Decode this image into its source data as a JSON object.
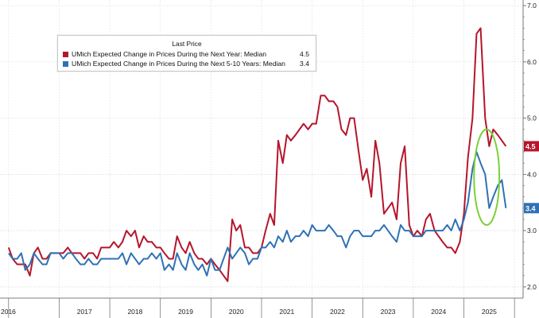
{
  "chart_data": {
    "type": "line",
    "title": "",
    "xlabel": "",
    "ylabel": "",
    "legend_title": "Last Price",
    "legend_placement": "top-left",
    "y_axis_side": "right",
    "ylim": [
      1.8,
      7.1
    ],
    "yticks": [
      "2.0",
      "3.0",
      "4.0",
      "5.0",
      "6.0",
      "7.0"
    ],
    "year_labels": [
      "2016",
      "2017",
      "2018",
      "2019",
      "2020",
      "2021",
      "2022",
      "2023",
      "2024",
      "2025"
    ],
    "grid": true,
    "highlight": {
      "shape": "ellipse",
      "color": "#7cd13a",
      "x_center": 2025.45,
      "y_center": 3.95,
      "x_radius": 0.25,
      "y_radius": 0.85
    },
    "series": [
      {
        "name": "UMich Expected Change in Prices During the Next Year: Median",
        "last_value": "4.5",
        "color": "#b5152b",
        "points": [
          [
            2016.0,
            2.7
          ],
          [
            2016.08,
            2.5
          ],
          [
            2016.17,
            2.4
          ],
          [
            2016.25,
            2.4
          ],
          [
            2016.33,
            2.4
          ],
          [
            2016.42,
            2.2
          ],
          [
            2016.5,
            2.6
          ],
          [
            2016.58,
            2.7
          ],
          [
            2016.67,
            2.5
          ],
          [
            2016.75,
            2.5
          ],
          [
            2016.83,
            2.6
          ],
          [
            2016.92,
            2.6
          ],
          [
            2017.0,
            2.6
          ],
          [
            2017.08,
            2.6
          ],
          [
            2017.17,
            2.7
          ],
          [
            2017.25,
            2.6
          ],
          [
            2017.33,
            2.6
          ],
          [
            2017.42,
            2.6
          ],
          [
            2017.5,
            2.5
          ],
          [
            2017.58,
            2.6
          ],
          [
            2017.67,
            2.6
          ],
          [
            2017.75,
            2.5
          ],
          [
            2017.83,
            2.7
          ],
          [
            2017.92,
            2.7
          ],
          [
            2018.0,
            2.7
          ],
          [
            2018.08,
            2.8
          ],
          [
            2018.17,
            2.7
          ],
          [
            2018.25,
            2.8
          ],
          [
            2018.33,
            3.0
          ],
          [
            2018.42,
            2.9
          ],
          [
            2018.5,
            3.0
          ],
          [
            2018.58,
            2.7
          ],
          [
            2018.67,
            2.9
          ],
          [
            2018.75,
            2.8
          ],
          [
            2018.83,
            2.8
          ],
          [
            2018.92,
            2.7
          ],
          [
            2019.0,
            2.7
          ],
          [
            2019.08,
            2.6
          ],
          [
            2019.17,
            2.5
          ],
          [
            2019.25,
            2.5
          ],
          [
            2019.33,
            2.9
          ],
          [
            2019.42,
            2.7
          ],
          [
            2019.5,
            2.6
          ],
          [
            2019.58,
            2.8
          ],
          [
            2019.67,
            2.6
          ],
          [
            2019.75,
            2.5
          ],
          [
            2019.83,
            2.5
          ],
          [
            2019.92,
            2.4
          ],
          [
            2020.0,
            2.5
          ],
          [
            2020.08,
            2.4
          ],
          [
            2020.17,
            2.3
          ],
          [
            2020.25,
            2.2
          ],
          [
            2020.33,
            2.1
          ],
          [
            2020.42,
            3.2
          ],
          [
            2020.5,
            3.0
          ],
          [
            2020.58,
            3.1
          ],
          [
            2020.67,
            2.7
          ],
          [
            2020.75,
            2.7
          ],
          [
            2020.83,
            2.6
          ],
          [
            2020.92,
            2.6
          ],
          [
            2021.0,
            2.7
          ],
          [
            2021.08,
            3.0
          ],
          [
            2021.17,
            3.3
          ],
          [
            2021.25,
            3.1
          ],
          [
            2021.33,
            4.6
          ],
          [
            2021.42,
            4.2
          ],
          [
            2021.5,
            4.7
          ],
          [
            2021.58,
            4.6
          ],
          [
            2021.67,
            4.7
          ],
          [
            2021.75,
            4.8
          ],
          [
            2021.83,
            4.9
          ],
          [
            2021.92,
            4.8
          ],
          [
            2022.0,
            4.9
          ],
          [
            2022.08,
            4.9
          ],
          [
            2022.17,
            5.4
          ],
          [
            2022.25,
            5.4
          ],
          [
            2022.33,
            5.3
          ],
          [
            2022.42,
            5.3
          ],
          [
            2022.5,
            5.2
          ],
          [
            2022.58,
            4.8
          ],
          [
            2022.67,
            4.7
          ],
          [
            2022.75,
            5.0
          ],
          [
            2022.83,
            5.0
          ],
          [
            2022.92,
            4.4
          ],
          [
            2023.0,
            3.9
          ],
          [
            2023.08,
            4.1
          ],
          [
            2023.17,
            3.6
          ],
          [
            2023.25,
            4.6
          ],
          [
            2023.33,
            4.2
          ],
          [
            2023.42,
            3.3
          ],
          [
            2023.5,
            3.4
          ],
          [
            2023.58,
            3.5
          ],
          [
            2023.67,
            3.2
          ],
          [
            2023.75,
            4.2
          ],
          [
            2023.83,
            4.5
          ],
          [
            2023.92,
            3.1
          ],
          [
            2024.0,
            2.9
          ],
          [
            2024.08,
            3.0
          ],
          [
            2024.17,
            2.9
          ],
          [
            2024.25,
            3.2
          ],
          [
            2024.33,
            3.3
          ],
          [
            2024.42,
            3.0
          ],
          [
            2024.5,
            2.9
          ],
          [
            2024.58,
            2.8
          ],
          [
            2024.67,
            2.7
          ],
          [
            2024.75,
            2.7
          ],
          [
            2024.83,
            2.6
          ],
          [
            2024.92,
            2.8
          ],
          [
            2025.0,
            3.3
          ],
          [
            2025.08,
            4.3
          ],
          [
            2025.17,
            5.0
          ],
          [
            2025.25,
            6.5
          ],
          [
            2025.33,
            6.6
          ],
          [
            2025.42,
            5.0
          ],
          [
            2025.5,
            4.5
          ],
          [
            2025.58,
            4.8
          ],
          [
            2025.67,
            4.7
          ],
          [
            2025.75,
            4.6
          ],
          [
            2025.83,
            4.5
          ]
        ]
      },
      {
        "name": "UMich Expected Change in Prices During the Next 5-10 Years: Median",
        "last_value": "3.4",
        "color": "#2f71b5",
        "points": [
          [
            2016.0,
            2.6
          ],
          [
            2016.08,
            2.5
          ],
          [
            2016.17,
            2.5
          ],
          [
            2016.25,
            2.6
          ],
          [
            2016.33,
            2.3
          ],
          [
            2016.42,
            2.4
          ],
          [
            2016.5,
            2.6
          ],
          [
            2016.58,
            2.5
          ],
          [
            2016.67,
            2.4
          ],
          [
            2016.75,
            2.4
          ],
          [
            2016.83,
            2.6
          ],
          [
            2016.92,
            2.6
          ],
          [
            2017.0,
            2.6
          ],
          [
            2017.08,
            2.5
          ],
          [
            2017.17,
            2.6
          ],
          [
            2017.25,
            2.6
          ],
          [
            2017.33,
            2.5
          ],
          [
            2017.42,
            2.4
          ],
          [
            2017.5,
            2.4
          ],
          [
            2017.58,
            2.5
          ],
          [
            2017.67,
            2.4
          ],
          [
            2017.75,
            2.4
          ],
          [
            2017.83,
            2.5
          ],
          [
            2017.92,
            2.5
          ],
          [
            2018.0,
            2.5
          ],
          [
            2018.08,
            2.5
          ],
          [
            2018.17,
            2.5
          ],
          [
            2018.25,
            2.6
          ],
          [
            2018.33,
            2.4
          ],
          [
            2018.42,
            2.6
          ],
          [
            2018.5,
            2.5
          ],
          [
            2018.58,
            2.4
          ],
          [
            2018.67,
            2.5
          ],
          [
            2018.75,
            2.5
          ],
          [
            2018.83,
            2.6
          ],
          [
            2018.92,
            2.5
          ],
          [
            2019.0,
            2.6
          ],
          [
            2019.08,
            2.3
          ],
          [
            2019.17,
            2.4
          ],
          [
            2019.25,
            2.3
          ],
          [
            2019.33,
            2.6
          ],
          [
            2019.42,
            2.4
          ],
          [
            2019.5,
            2.3
          ],
          [
            2019.58,
            2.6
          ],
          [
            2019.67,
            2.4
          ],
          [
            2019.75,
            2.3
          ],
          [
            2019.83,
            2.4
          ],
          [
            2019.92,
            2.2
          ],
          [
            2020.0,
            2.5
          ],
          [
            2020.08,
            2.3
          ],
          [
            2020.17,
            2.3
          ],
          [
            2020.25,
            2.5
          ],
          [
            2020.33,
            2.7
          ],
          [
            2020.42,
            2.5
          ],
          [
            2020.5,
            2.6
          ],
          [
            2020.58,
            2.7
          ],
          [
            2020.67,
            2.6
          ],
          [
            2020.75,
            2.4
          ],
          [
            2020.83,
            2.5
          ],
          [
            2020.92,
            2.5
          ],
          [
            2021.0,
            2.7
          ],
          [
            2021.08,
            2.7
          ],
          [
            2021.17,
            2.8
          ],
          [
            2021.25,
            2.7
          ],
          [
            2021.33,
            2.9
          ],
          [
            2021.42,
            2.8
          ],
          [
            2021.5,
            3.0
          ],
          [
            2021.58,
            2.8
          ],
          [
            2021.67,
            2.9
          ],
          [
            2021.75,
            2.9
          ],
          [
            2021.83,
            3.0
          ],
          [
            2021.92,
            2.9
          ],
          [
            2022.0,
            3.1
          ],
          [
            2022.08,
            3.0
          ],
          [
            2022.17,
            3.0
          ],
          [
            2022.25,
            3.0
          ],
          [
            2022.33,
            3.1
          ],
          [
            2022.42,
            3.0
          ],
          [
            2022.5,
            2.9
          ],
          [
            2022.58,
            2.9
          ],
          [
            2022.67,
            2.7
          ],
          [
            2022.75,
            2.9
          ],
          [
            2022.83,
            3.0
          ],
          [
            2022.92,
            3.0
          ],
          [
            2023.0,
            2.9
          ],
          [
            2023.08,
            2.9
          ],
          [
            2023.17,
            2.9
          ],
          [
            2023.25,
            3.0
          ],
          [
            2023.33,
            3.0
          ],
          [
            2023.42,
            3.1
          ],
          [
            2023.5,
            3.0
          ],
          [
            2023.58,
            2.9
          ],
          [
            2023.67,
            2.8
          ],
          [
            2023.75,
            3.1
          ],
          [
            2023.83,
            3.0
          ],
          [
            2023.92,
            3.0
          ],
          [
            2024.0,
            2.9
          ],
          [
            2024.08,
            2.9
          ],
          [
            2024.17,
            2.9
          ],
          [
            2024.25,
            3.0
          ],
          [
            2024.33,
            3.0
          ],
          [
            2024.42,
            3.0
          ],
          [
            2024.5,
            3.0
          ],
          [
            2024.58,
            3.0
          ],
          [
            2024.67,
            3.1
          ],
          [
            2024.75,
            3.0
          ],
          [
            2024.83,
            3.2
          ],
          [
            2024.92,
            3.0
          ],
          [
            2025.0,
            3.2
          ],
          [
            2025.08,
            3.5
          ],
          [
            2025.17,
            4.1
          ],
          [
            2025.25,
            4.4
          ],
          [
            2025.33,
            4.2
          ],
          [
            2025.42,
            4.0
          ],
          [
            2025.5,
            3.4
          ],
          [
            2025.58,
            3.6
          ],
          [
            2025.67,
            3.8
          ],
          [
            2025.75,
            3.9
          ],
          [
            2025.83,
            3.4
          ]
        ]
      }
    ]
  }
}
